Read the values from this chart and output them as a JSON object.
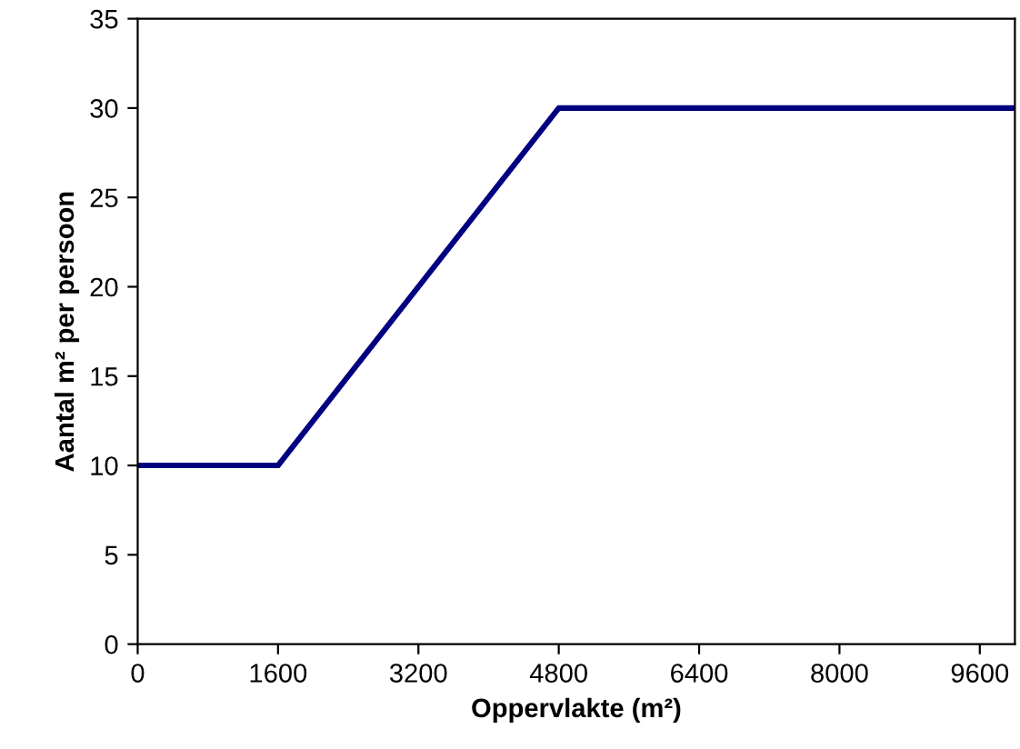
{
  "chart_data": {
    "type": "line",
    "xlabel": "Oppervlakte (m²)",
    "ylabel": "Aantal m² per persoon",
    "x": [
      0,
      1600,
      4800,
      10000
    ],
    "series": [
      {
        "color": "#000080",
        "values": [
          10,
          10,
          30,
          30
        ]
      }
    ],
    "xlim": [
      0,
      10000
    ],
    "xticks": [
      0,
      1600,
      3200,
      4800,
      6400,
      8000,
      9600
    ],
    "ylim": [
      0,
      35
    ],
    "yticks": [
      0,
      5,
      10,
      15,
      20,
      25,
      30,
      35
    ],
    "grid": false,
    "legend": false,
    "marker": "none",
    "line_style": "solid"
  }
}
